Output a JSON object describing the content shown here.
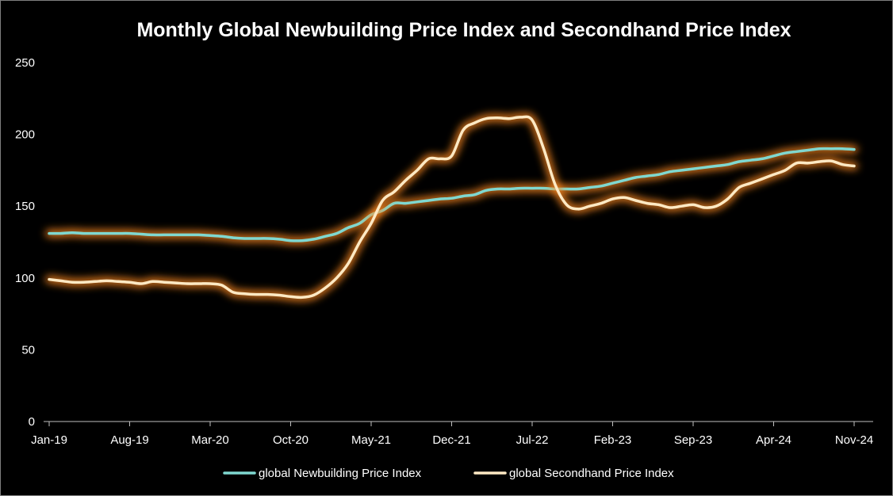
{
  "colors": {
    "background": "#000000",
    "text": "#ffffff",
    "axis": "#bfbfbf",
    "newbuilding": "#7fd8d0",
    "secondhand": "#fde9c4",
    "glow": "#ff8a1f"
  },
  "chart_data": {
    "type": "line",
    "title": "Monthly Global Newbuilding Price Index and Secondhand Price Index",
    "xlabel": "",
    "ylabel": "",
    "ylim": [
      0,
      250
    ],
    "yticks": [
      0,
      50,
      100,
      150,
      200,
      250
    ],
    "x_tick_labels": [
      "Jan-19",
      "Aug-19",
      "Mar-20",
      "Oct-20",
      "May-21",
      "Dec-21",
      "Jul-22",
      "Feb-23",
      "Sep-23",
      "Apr-24",
      "Nov-24"
    ],
    "x": [
      "Jan-19",
      "Feb-19",
      "Mar-19",
      "Apr-19",
      "May-19",
      "Jun-19",
      "Jul-19",
      "Aug-19",
      "Sep-19",
      "Oct-19",
      "Nov-19",
      "Dec-19",
      "Jan-20",
      "Feb-20",
      "Mar-20",
      "Apr-20",
      "May-20",
      "Jun-20",
      "Jul-20",
      "Aug-20",
      "Sep-20",
      "Oct-20",
      "Nov-20",
      "Dec-20",
      "Jan-21",
      "Feb-21",
      "Mar-21",
      "Apr-21",
      "May-21",
      "Jun-21",
      "Jul-21",
      "Aug-21",
      "Sep-21",
      "Oct-21",
      "Nov-21",
      "Dec-21",
      "Jan-22",
      "Feb-22",
      "Mar-22",
      "Apr-22",
      "May-22",
      "Jun-22",
      "Jul-22",
      "Aug-22",
      "Sep-22",
      "Oct-22",
      "Nov-22",
      "Dec-22",
      "Jan-23",
      "Feb-23",
      "Mar-23",
      "Apr-23",
      "May-23",
      "Jun-23",
      "Jul-23",
      "Aug-23",
      "Sep-23",
      "Oct-23",
      "Nov-23",
      "Dec-23",
      "Jan-24",
      "Feb-24",
      "Mar-24",
      "Apr-24",
      "May-24",
      "Jun-24",
      "Jul-24",
      "Aug-24",
      "Sep-24",
      "Oct-24",
      "Nov-24"
    ],
    "grid": false,
    "legend_position": "bottom",
    "series": [
      {
        "name": "global Newbuilding Price Index",
        "values": [
          131,
          131,
          131.5,
          131,
          131,
          131,
          131,
          131,
          130.5,
          130,
          130,
          130,
          130,
          130,
          129.5,
          129,
          128,
          127.5,
          127.5,
          127.5,
          127,
          126,
          126,
          127,
          129,
          131,
          135,
          138,
          144,
          147,
          152,
          152,
          153,
          154,
          155,
          155.5,
          157,
          158,
          161,
          162,
          162,
          162.5,
          162.5,
          162.5,
          162,
          162,
          162,
          163,
          164,
          166,
          168,
          170,
          171,
          172,
          174,
          175,
          176,
          177,
          178,
          179,
          181,
          182,
          183,
          185,
          187,
          188,
          189,
          190,
          190,
          190,
          189.5
        ]
      },
      {
        "name": "global Secondhand Price Index",
        "values": [
          99,
          98,
          97,
          97,
          97.5,
          98,
          97.5,
          97,
          96,
          97.5,
          97,
          96.5,
          96,
          96,
          96,
          95,
          90,
          89,
          88.5,
          88.5,
          88,
          87,
          86.5,
          88,
          93,
          100,
          110,
          125,
          138,
          154,
          160,
          168,
          175,
          183,
          183,
          185,
          203,
          208,
          211,
          211.5,
          211,
          212,
          210,
          190,
          165,
          151,
          148,
          150,
          152,
          155,
          156,
          154,
          152,
          151,
          149,
          150,
          151,
          149,
          150,
          155,
          163,
          166,
          169,
          172,
          175,
          180,
          180,
          181,
          181.5,
          179,
          178
        ]
      }
    ]
  }
}
